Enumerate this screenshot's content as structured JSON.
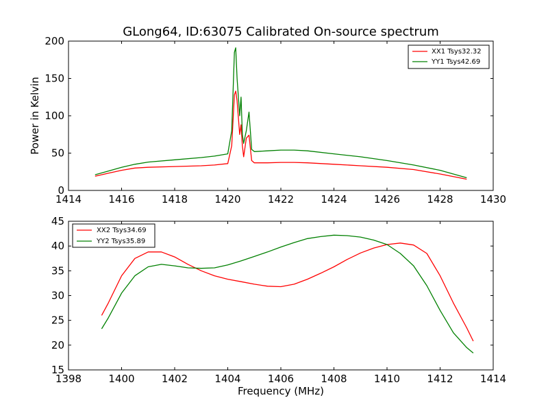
{
  "chart_data": [
    {
      "type": "line",
      "title": "GLong64, ID:63075 Calibrated On-source spectrum",
      "xlabel": "",
      "ylabel": "Power in Kelvin",
      "xlim": [
        1414,
        1430
      ],
      "ylim": [
        0,
        200
      ],
      "xticks": [
        "1414",
        "1416",
        "1418",
        "1420",
        "1422",
        "1424",
        "1426",
        "1428",
        "1430"
      ],
      "yticks": [
        "0",
        "50",
        "100",
        "150",
        "200"
      ],
      "legend_position": "top-right",
      "series": [
        {
          "name": "XX1 Tsys32.32",
          "color": "#ff0000",
          "x": [
            1415.0,
            1415.5,
            1416.0,
            1416.5,
            1417.0,
            1418.0,
            1419.0,
            1419.5,
            1420.0,
            1420.15,
            1420.25,
            1420.3,
            1420.35,
            1420.45,
            1420.5,
            1420.55,
            1420.6,
            1420.7,
            1420.8,
            1420.9,
            1421.0,
            1421.5,
            1422.0,
            1422.5,
            1423.0,
            1424.0,
            1425.0,
            1426.0,
            1427.0,
            1428.0,
            1429.0
          ],
          "y": [
            19,
            23,
            27,
            30,
            31,
            32,
            33,
            34,
            36,
            60,
            128,
            133,
            120,
            75,
            88,
            60,
            45,
            70,
            74,
            40,
            37,
            37,
            37.5,
            37.5,
            37,
            35,
            33,
            31,
            28,
            22,
            15
          ]
        },
        {
          "name": "YY1 Tsys42.69",
          "color": "#008000",
          "x": [
            1415.0,
            1415.5,
            1416.0,
            1416.5,
            1417.0,
            1418.0,
            1419.0,
            1419.5,
            1420.0,
            1420.15,
            1420.25,
            1420.3,
            1420.35,
            1420.45,
            1420.5,
            1420.55,
            1420.6,
            1420.7,
            1420.8,
            1420.9,
            1421.0,
            1421.5,
            1422.0,
            1422.5,
            1423.0,
            1424.0,
            1425.0,
            1426.0,
            1427.0,
            1428.0,
            1429.0
          ],
          "y": [
            21,
            26,
            31,
            35,
            38,
            41,
            44,
            46,
            49,
            80,
            185,
            191,
            150,
            100,
            125,
            75,
            63,
            80,
            105,
            55,
            52,
            53,
            54,
            54,
            53,
            49,
            45,
            40,
            34,
            27,
            17
          ]
        }
      ]
    },
    {
      "type": "line",
      "title": "",
      "xlabel": "Frequency (MHz)",
      "ylabel": "",
      "xlim": [
        1398,
        1414
      ],
      "ylim": [
        15,
        45
      ],
      "xticks": [
        "1398",
        "1400",
        "1402",
        "1404",
        "1406",
        "1408",
        "1410",
        "1412",
        "1414"
      ],
      "yticks": [
        "15",
        "20",
        "25",
        "30",
        "35",
        "40",
        "45"
      ],
      "legend_position": "top-left",
      "series": [
        {
          "name": "XX2 Tsys34.69",
          "color": "#ff0000",
          "x": [
            1399.25,
            1399.5,
            1400.0,
            1400.5,
            1401.0,
            1401.5,
            1402.0,
            1402.5,
            1403.0,
            1403.5,
            1404.0,
            1404.5,
            1405.0,
            1405.5,
            1406.0,
            1406.5,
            1407.0,
            1407.5,
            1408.0,
            1408.5,
            1409.0,
            1409.5,
            1410.0,
            1410.5,
            1411.0,
            1411.5,
            1412.0,
            1412.5,
            1413.0,
            1413.25
          ],
          "y": [
            26,
            28.5,
            34,
            37.5,
            38.8,
            38.8,
            37.8,
            36.3,
            35,
            34,
            33.3,
            32.8,
            32.3,
            31.9,
            31.8,
            32.3,
            33.3,
            34.5,
            35.8,
            37.3,
            38.6,
            39.6,
            40.3,
            40.6,
            40.2,
            38.5,
            34,
            28.5,
            23.5,
            20.8
          ]
        },
        {
          "name": "YY2 Tsys35.89",
          "color": "#008000",
          "x": [
            1399.25,
            1399.5,
            1400.0,
            1400.5,
            1401.0,
            1401.5,
            1402.0,
            1402.5,
            1403.0,
            1403.5,
            1404.0,
            1404.5,
            1405.0,
            1405.5,
            1406.0,
            1406.5,
            1407.0,
            1407.5,
            1408.0,
            1408.5,
            1409.0,
            1409.5,
            1410.0,
            1410.5,
            1411.0,
            1411.5,
            1412.0,
            1412.5,
            1413.0,
            1413.25
          ],
          "y": [
            23.3,
            25.5,
            30.5,
            34,
            35.8,
            36.3,
            36,
            35.6,
            35.5,
            35.6,
            36.2,
            37,
            37.9,
            38.8,
            39.8,
            40.7,
            41.5,
            41.9,
            42.2,
            42.1,
            41.8,
            41.2,
            40.3,
            38.5,
            36,
            32,
            27,
            22.5,
            19.5,
            18.4
          ]
        }
      ]
    }
  ]
}
